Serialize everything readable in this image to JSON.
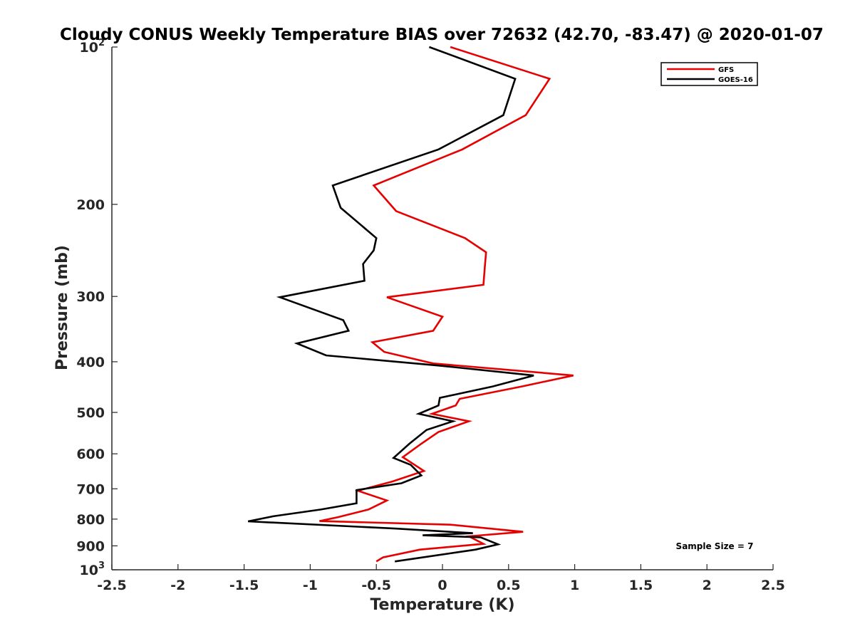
{
  "chart_data": {
    "type": "line",
    "title": "Cloudy CONUS Weekly Temperature BIAS over 72632 (42.70, -83.47) @ 2020-01-07",
    "xlabel": "Temperature (K)",
    "ylabel": "Pressure (mb)",
    "xlim": [
      -2.5,
      2.5
    ],
    "ylim": [
      100,
      1000
    ],
    "yscale": "log",
    "yreversed": true,
    "grid": false,
    "legend_position": "top-right",
    "x_ticks": [
      "-2.5",
      "-2",
      "-1.5",
      "-1",
      "-0.5",
      "0",
      "0.5",
      "1",
      "1.5",
      "2",
      "2.5"
    ],
    "x_tick_values": [
      -2.5,
      -2,
      -1.5,
      -1,
      -0.5,
      0,
      0.5,
      1,
      1.5,
      2,
      2.5
    ],
    "y_ticks": [
      {
        "value": 100,
        "base": "10",
        "exp": "2"
      },
      {
        "value": 200,
        "label": "200"
      },
      {
        "value": 300,
        "label": "300"
      },
      {
        "value": 400,
        "label": "400"
      },
      {
        "value": 500,
        "label": "500"
      },
      {
        "value": 600,
        "label": "600"
      },
      {
        "value": 700,
        "label": "700"
      },
      {
        "value": 800,
        "label": "800"
      },
      {
        "value": 900,
        "label": "900"
      },
      {
        "value": 1000,
        "base": "10",
        "exp": "3"
      }
    ],
    "annotation": "Sample Size = 7",
    "series": [
      {
        "name": "GFS",
        "color": "#e60000",
        "points": [
          [
            0.06,
            100
          ],
          [
            0.81,
            115
          ],
          [
            0.63,
            135
          ],
          [
            0.15,
            157
          ],
          [
            -0.52,
            184
          ],
          [
            -0.35,
            206
          ],
          [
            0.17,
            232
          ],
          [
            0.33,
            247
          ],
          [
            0.32,
            264
          ],
          [
            0.31,
            285
          ],
          [
            -0.42,
            301
          ],
          [
            0.0,
            328
          ],
          [
            -0.07,
            349
          ],
          [
            -0.53,
            367
          ],
          [
            -0.44,
            383
          ],
          [
            -0.07,
            403
          ],
          [
            0.99,
            425
          ],
          [
            0.6,
            446
          ],
          [
            0.13,
            471
          ],
          [
            0.1,
            485
          ],
          [
            -0.08,
            503
          ],
          [
            0.2,
            520
          ],
          [
            -0.03,
            545
          ],
          [
            -0.16,
            574
          ],
          [
            -0.3,
            609
          ],
          [
            -0.14,
            647
          ],
          [
            -0.38,
            678
          ],
          [
            -0.64,
            706
          ],
          [
            -0.42,
            737
          ],
          [
            -0.56,
            767
          ],
          [
            -0.79,
            793
          ],
          [
            -0.93,
            807
          ],
          [
            0.06,
            820
          ],
          [
            0.61,
            846
          ],
          [
            0.2,
            863
          ],
          [
            0.31,
            892
          ],
          [
            -0.17,
            915
          ],
          [
            -0.45,
            947
          ],
          [
            -0.5,
            964
          ]
        ]
      },
      {
        "name": "GOES-16",
        "color": "#000000",
        "points": [
          [
            -0.1,
            100
          ],
          [
            0.55,
            115
          ],
          [
            0.46,
            135
          ],
          [
            -0.03,
            157
          ],
          [
            -0.83,
            184
          ],
          [
            -0.77,
            203
          ],
          [
            -0.5,
            232
          ],
          [
            -0.52,
            245
          ],
          [
            -0.6,
            260
          ],
          [
            -0.59,
            280
          ],
          [
            -1.23,
            301
          ],
          [
            -0.75,
            333
          ],
          [
            -0.71,
            349
          ],
          [
            -1.1,
            369
          ],
          [
            -0.88,
            389
          ],
          [
            -0.02,
            407
          ],
          [
            0.69,
            425
          ],
          [
            0.38,
            446
          ],
          [
            -0.02,
            469
          ],
          [
            -0.03,
            485
          ],
          [
            -0.18,
            503
          ],
          [
            0.08,
            520
          ],
          [
            -0.12,
            540
          ],
          [
            -0.25,
            574
          ],
          [
            -0.37,
            611
          ],
          [
            -0.24,
            630
          ],
          [
            -0.16,
            660
          ],
          [
            -0.31,
            683
          ],
          [
            -0.65,
            704
          ],
          [
            -0.65,
            746
          ],
          [
            -0.92,
            767
          ],
          [
            -1.28,
            790
          ],
          [
            -1.47,
            808
          ],
          [
            -0.36,
            834
          ],
          [
            0.23,
            851
          ],
          [
            -0.15,
            859
          ],
          [
            0.29,
            867
          ],
          [
            0.42,
            894
          ],
          [
            0.25,
            915
          ],
          [
            -0.36,
            964
          ]
        ]
      }
    ]
  }
}
